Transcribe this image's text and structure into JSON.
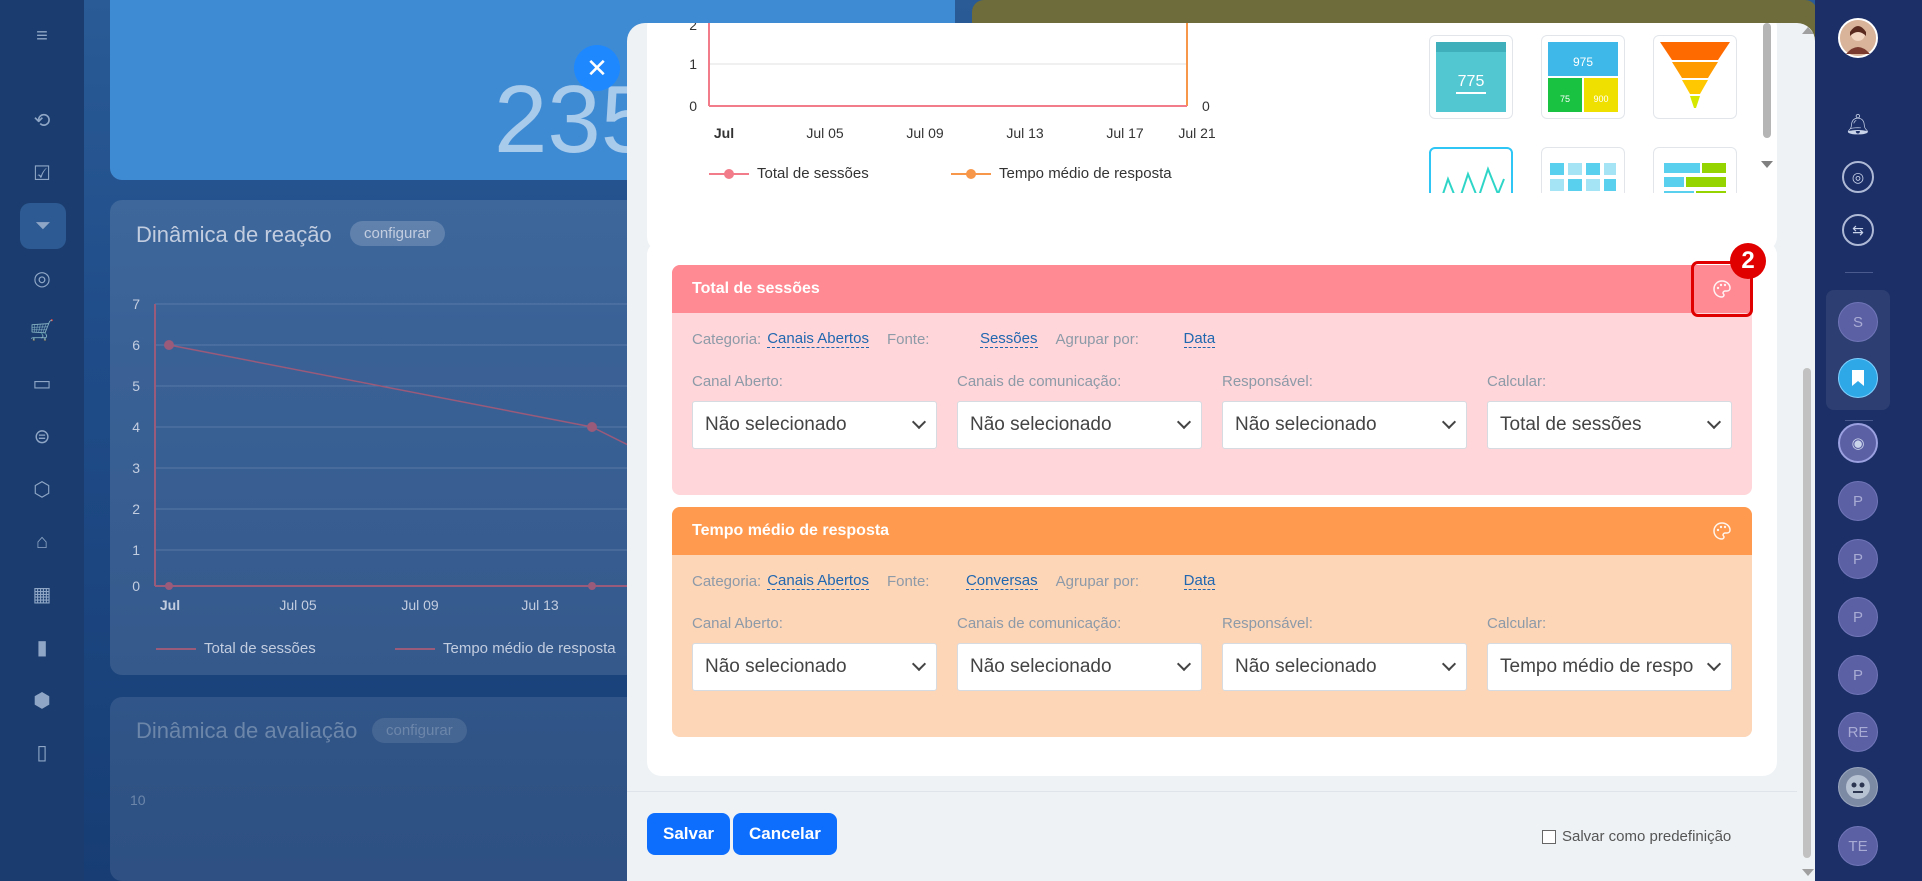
{
  "background": {
    "big_number": "235",
    "chart_card": {
      "title": "Dinâmica de reação",
      "config_label": "configurar",
      "y_ticks": [
        "7",
        "6",
        "5",
        "4",
        "3",
        "2",
        "1",
        "0"
      ],
      "x_ticks": [
        "Jul",
        "Jul 05",
        "Jul 09",
        "Jul 13"
      ],
      "legend": [
        "Total de sessões",
        "Tempo médio de resposta"
      ]
    },
    "chart_card2": {
      "title": "Dinâmica de avaliação",
      "config_label": "configurar",
      "y_tick": "10"
    }
  },
  "right_rail": {
    "letters": [
      "S",
      "P",
      "P",
      "P",
      "P",
      "RE",
      "TE"
    ]
  },
  "modal": {
    "top_chart": {
      "y_ticks": [
        "2",
        "1",
        "0"
      ],
      "y2_tick": "0",
      "x_ticks": [
        "Jul",
        "Jul 05",
        "Jul 09",
        "Jul 13",
        "Jul 17",
        "Jul 21"
      ],
      "legend": [
        {
          "label": "Total de sessões",
          "color": "#f27c8a"
        },
        {
          "label": "Tempo médio de resposta",
          "color": "#f7974a"
        }
      ]
    },
    "thumbnails": {
      "t1": "775",
      "t2a": "975",
      "t2b": "75",
      "t2c": "900"
    },
    "series": [
      {
        "title": "Total de sessões",
        "header_color": "#ff8a93",
        "body_color": "#ffd6d9",
        "categoria_label": "Categoria:",
        "categoria_value": "Canais Abertos",
        "fonte_label": "Fonte:",
        "fonte_value": "Sessões",
        "agrupar_label": "Agrupar por:",
        "agrupar_value": "Data",
        "fields": [
          {
            "label": "Canal Aberto:",
            "value": "Não selecionado"
          },
          {
            "label": "Canais de comunicação:",
            "value": "Não selecionado"
          },
          {
            "label": "Responsável:",
            "value": "Não selecionado"
          },
          {
            "label": "Calcular:",
            "value": "Total de sessões"
          }
        ]
      },
      {
        "title": "Tempo médio de resposta",
        "header_color": "#ff9a4f",
        "body_color": "#fdd5b7",
        "categoria_label": "Categoria:",
        "categoria_value": "Canais Abertos",
        "fonte_label": "Fonte:",
        "fonte_value": "Conversas",
        "agrupar_label": "Agrupar por:",
        "agrupar_value": "Data",
        "fields": [
          {
            "label": "Canal Aberto:",
            "value": "Não selecionado"
          },
          {
            "label": "Canais de comunicação:",
            "value": "Não selecionado"
          },
          {
            "label": "Responsável:",
            "value": "Não selecionado"
          },
          {
            "label": "Calcular:",
            "value": "Tempo médio de respo"
          }
        ]
      }
    ],
    "step_badge": "2",
    "footer": {
      "save": "Salvar",
      "cancel": "Cancelar",
      "save_preset": "Salvar como predefinição"
    }
  }
}
